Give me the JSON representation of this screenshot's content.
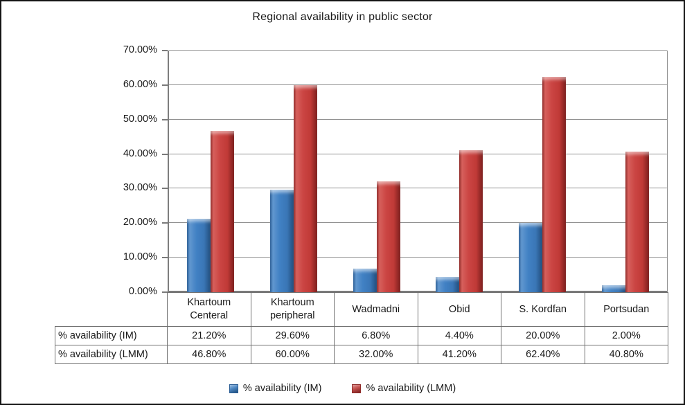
{
  "chart_data": {
    "type": "bar",
    "title": "Regional availability in public sector",
    "categories": [
      "Khartoum Centeral",
      "Khartoum peripheral",
      "Wadmadni",
      "Obid",
      "S. Kordfan",
      "Portsudan"
    ],
    "series": [
      {
        "name": "% availability (IM)",
        "color": "#3C78B8",
        "values": [
          21.2,
          29.6,
          6.8,
          4.4,
          20.0,
          2.0
        ]
      },
      {
        "name": "% availability (LMM)",
        "color": "#C23B38",
        "values": [
          46.8,
          60.0,
          32.0,
          41.2,
          62.4,
          40.8
        ]
      }
    ],
    "ylim": [
      0,
      70
    ],
    "y_ticks": [
      "70.00%",
      "60.00%",
      "50.00%",
      "40.00%",
      "30.00%",
      "20.00%",
      "10.00%",
      "0.00%"
    ],
    "grid": true,
    "legend_position": "bottom",
    "colors": {
      "grid": "#8F8F8F",
      "axis": "#7A7A7A",
      "table_border": "#6F6F6F",
      "frame": "#141414",
      "text": "#1A1A1A"
    },
    "data_table": {
      "row_labels": [
        "% availability (IM)",
        "% availability (LMM)"
      ],
      "rows": [
        [
          "21.20%",
          "29.60%",
          "6.80%",
          "4.40%",
          "20.00%",
          "2.00%"
        ],
        [
          "46.80%",
          "60.00%",
          "32.00%",
          "41.20%",
          "62.40%",
          "40.80%"
        ]
      ]
    }
  }
}
